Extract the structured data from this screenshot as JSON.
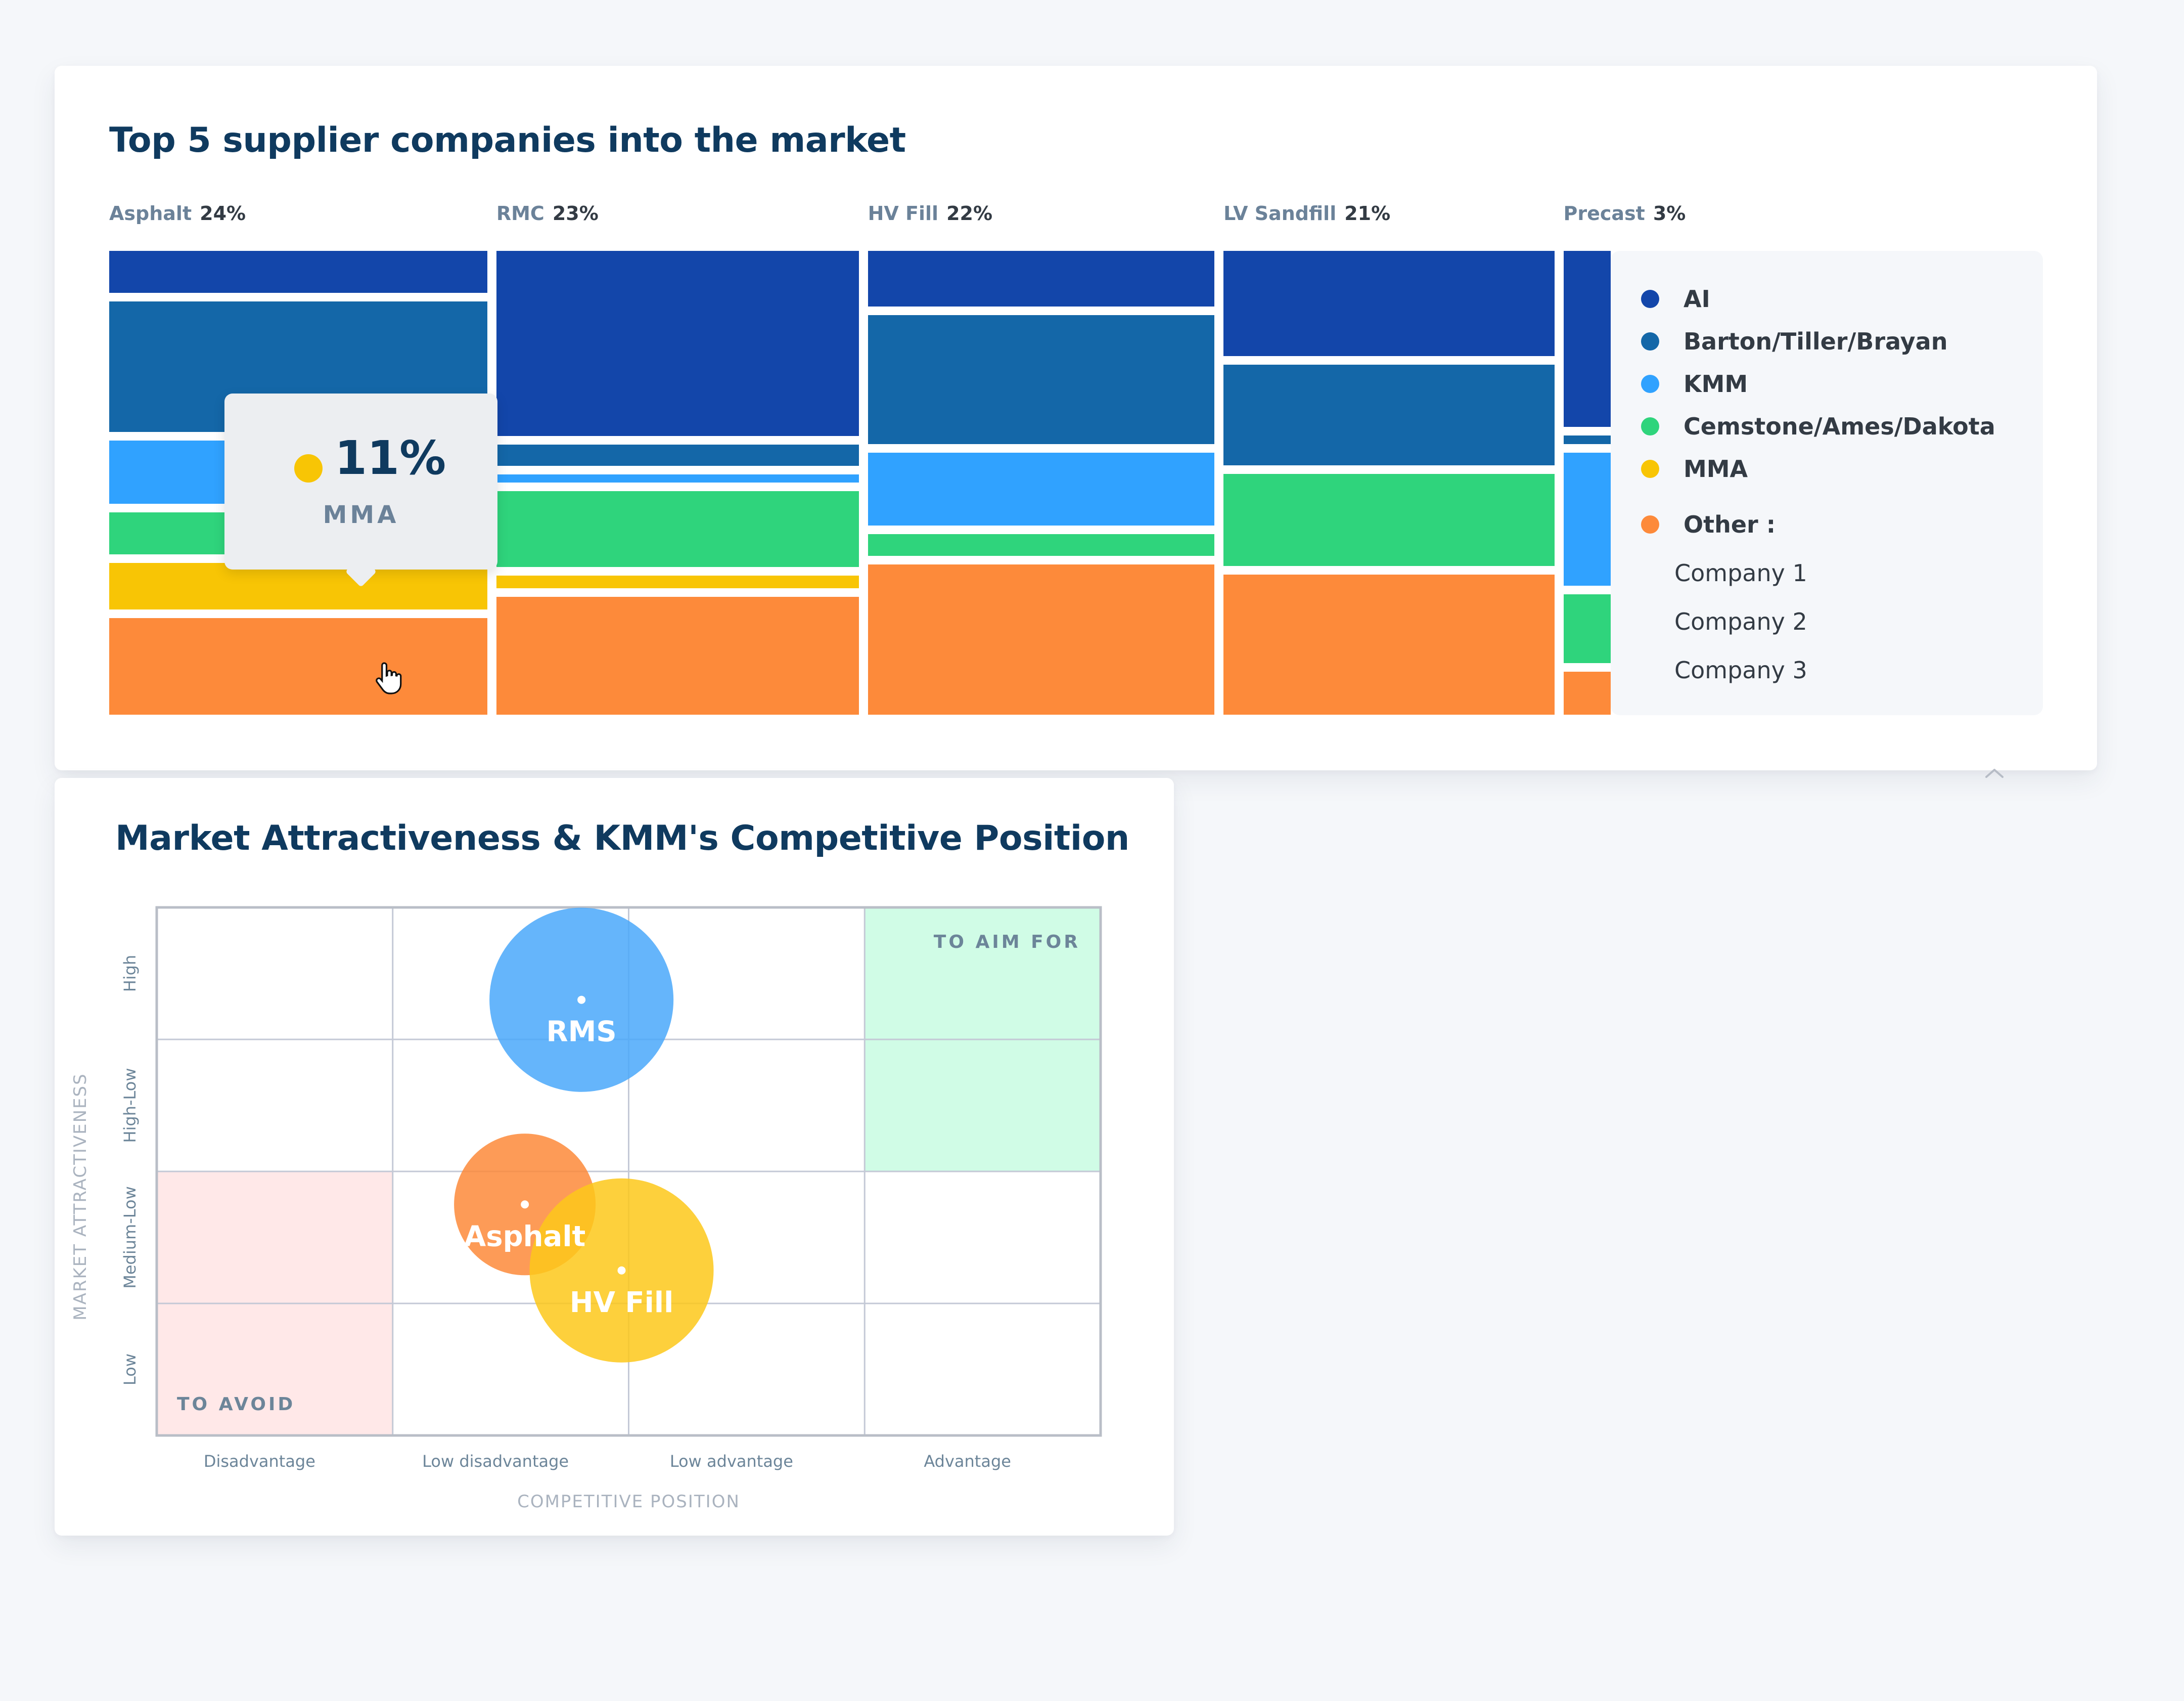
{
  "colors": {
    "AI": "#1346aa",
    "Barton/Tiller/Brayan": "#1467a8",
    "KMM": "#30a2ff",
    "Cemstone/Ames/Dakota": "#2fd47c",
    "MMA": "#f8c505",
    "Other": "#fd8a3a",
    "title": "#0f3a5f",
    "aim_zone": "#d0fce6",
    "avoid_zone": "#ffe8e8"
  },
  "chart_data": [
    {
      "type": "bar",
      "subtype": "marimekko",
      "title": "Top 5 supplier companies into the market",
      "categories": [
        "Asphalt",
        "RMC",
        "HV Fill",
        "LV Sandfill",
        "Precast"
      ],
      "category_share_labels": [
        "24%",
        "23%",
        "22%",
        "21%",
        "3%"
      ],
      "category_shares": [
        24,
        23,
        22,
        21,
        3
      ],
      "series": [
        {
          "name": "AI",
          "values": [
            10,
            44,
            13,
            24,
            41
          ]
        },
        {
          "name": "Barton/Tiller/Brayan",
          "values": [
            31,
            5,
            30,
            23,
            2
          ]
        },
        {
          "name": "KMM",
          "values": [
            15,
            2,
            17,
            0,
            31
          ]
        },
        {
          "name": "Cemstone/Ames/Dakota",
          "values": [
            10,
            18,
            5,
            21,
            16
          ]
        },
        {
          "name": "MMA",
          "values": [
            11,
            3,
            0,
            0,
            0
          ]
        },
        {
          "name": "Other",
          "values": [
            23,
            28,
            35,
            32,
            10
          ]
        }
      ],
      "legend": {
        "items": [
          "AI",
          "Barton/Tiller/Brayan",
          "KMM",
          "Cemstone/Ames/Dakota",
          "MMA"
        ],
        "other_label": "Other :",
        "other_items": [
          "Company 1",
          "Company 2",
          "Company 3"
        ],
        "placement": "right"
      },
      "tooltip": {
        "series": "MMA",
        "category": "Asphalt",
        "value_label": "11%",
        "label": "MMA"
      }
    },
    {
      "type": "scatter",
      "subtype": "bubble-matrix",
      "title": "Market Attractiveness & KMM's Competitive Position",
      "xlabel": "COMPETITIVE POSITION",
      "ylabel": "MARKET ATTRACTIVENESS",
      "x_categories": [
        "Disadvantage",
        "Low disadvantage",
        "Low advantage",
        "Advantage"
      ],
      "y_categories": [
        "Low",
        "Medium-Low",
        "High-Low",
        "High"
      ],
      "xlim": [
        0,
        4
      ],
      "ylim": [
        0,
        4
      ],
      "zones": [
        {
          "label": "TO AIM FOR",
          "x": [
            3,
            4
          ],
          "y": [
            2,
            4
          ]
        },
        {
          "label": "TO AVOID",
          "x": [
            0,
            1
          ],
          "y": [
            0,
            2
          ]
        }
      ],
      "points": [
        {
          "name": "RMS",
          "x": 1.8,
          "y": 3.3,
          "size": 0.39,
          "color": "#4aa8fa"
        },
        {
          "name": "Asphalt",
          "x": 1.56,
          "y": 1.75,
          "size": 0.3,
          "color": "#fd8a3a"
        },
        {
          "name": "HV Fill",
          "x": 1.97,
          "y": 1.25,
          "size": 0.39,
          "color": "#fdc81a"
        }
      ]
    }
  ]
}
